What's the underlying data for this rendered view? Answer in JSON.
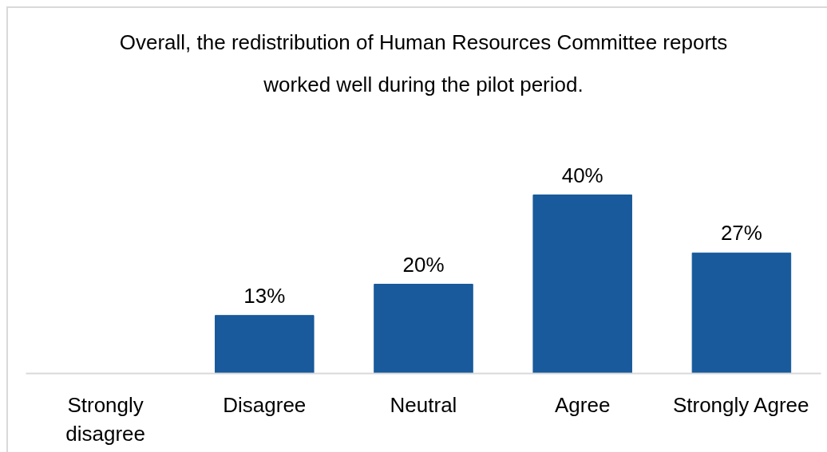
{
  "chart_data": {
    "type": "bar",
    "title": "Overall, the redistribution of Human Resources Committee reports worked well during the pilot period.",
    "categories": [
      "Strongly disagree",
      "Disagree",
      "Neutral",
      "Agree",
      "Strongly Agree"
    ],
    "values": [
      0,
      13,
      20,
      40,
      27
    ],
    "color": "#185a9b",
    "value_labels": [
      null,
      "13%",
      "20%",
      "40%",
      "27%"
    ],
    "grid": false
  }
}
